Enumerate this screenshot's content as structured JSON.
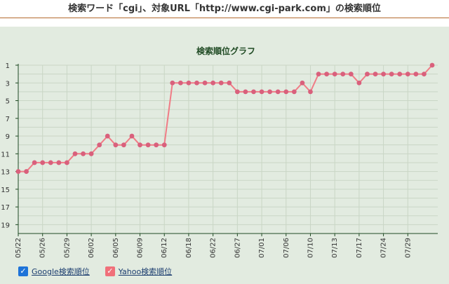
{
  "page": {
    "title": "検索ワード「cgi」、対象URL「http://www.cgi-park.com」の検索順位"
  },
  "legend": [
    {
      "label": "Google検索順位",
      "checked": true,
      "color": "#1e73d8"
    },
    {
      "label": "Yahoo検索順位",
      "checked": true,
      "color": "#f0707a"
    }
  ],
  "colors": {
    "panel_bg": "#e2ebe0",
    "grid": "#c9d6c5",
    "axis": "#1f4a23",
    "line": "#f07c86",
    "marker": "#d9607c",
    "title": "#1f4a23"
  },
  "chart_data": {
    "type": "line",
    "title": "検索順位グラフ",
    "xlabel": "",
    "ylabel": "",
    "y_reversed": true,
    "ylim": [
      1,
      20
    ],
    "y_ticks": [
      1,
      3,
      5,
      7,
      9,
      11,
      13,
      15,
      17,
      19
    ],
    "x_tick_labels": [
      "05/22",
      "05/26",
      "05/29",
      "06/02",
      "06/05",
      "06/09",
      "06/12",
      "06/18",
      "06/22",
      "06/27",
      "07/01",
      "07/06",
      "07/10",
      "07/13",
      "07/17",
      "07/24",
      "07/29"
    ],
    "x_tick_index": [
      0,
      3,
      6,
      9,
      12,
      15,
      18,
      21,
      24,
      27,
      30,
      33,
      36,
      39,
      42,
      45,
      48
    ],
    "grid": true,
    "legend_position": "bottom-left",
    "series": [
      {
        "name": "Yahoo検索順位",
        "values": [
          13,
          13,
          12,
          12,
          12,
          12,
          12,
          11,
          11,
          11,
          10,
          9,
          10,
          10,
          9,
          10,
          10,
          10,
          10,
          3,
          3,
          3,
          3,
          3,
          3,
          3,
          3,
          4,
          4,
          4,
          4,
          4,
          4,
          4,
          4,
          3,
          4,
          2,
          2,
          2,
          2,
          2,
          3,
          2,
          2,
          2,
          2,
          2,
          2,
          2,
          2,
          1
        ]
      }
    ]
  }
}
